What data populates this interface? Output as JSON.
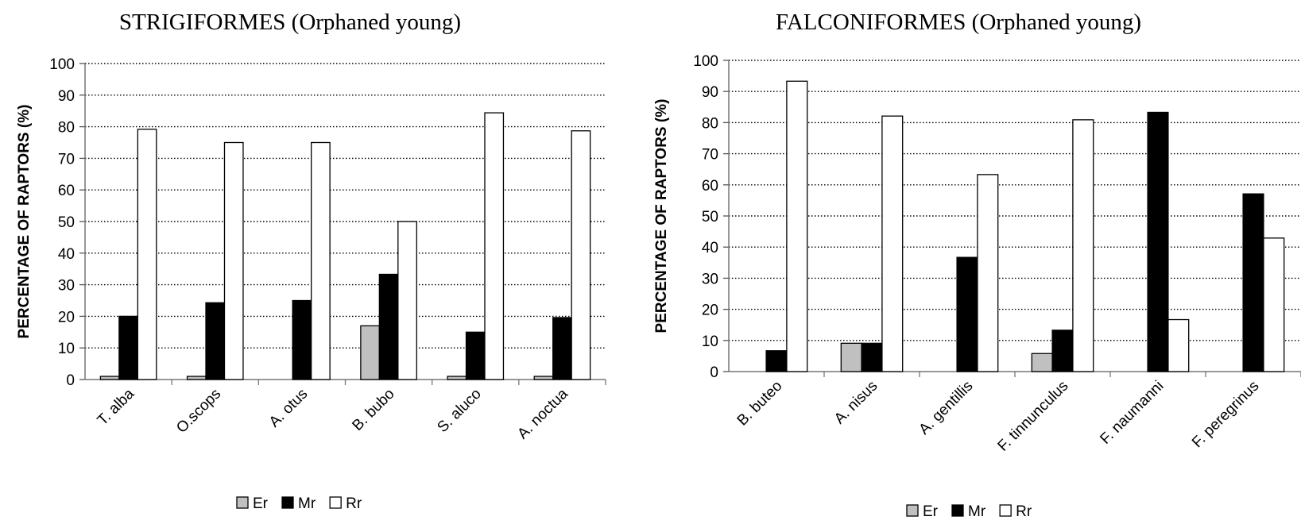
{
  "chart_data": [
    {
      "type": "bar",
      "title": "STRIGIFORMES (Orphaned young)",
      "ylabel": "PERCENTAGE  OF RAPTORS (%)",
      "xlabel": "",
      "ylim": [
        0,
        100
      ],
      "yticks": [
        0,
        10,
        20,
        30,
        40,
        50,
        60,
        70,
        80,
        90,
        100
      ],
      "grid": "horizontal-dotted",
      "legend_position": "bottom-center",
      "categories": [
        "T. alba",
        "O.scops",
        "A. otus",
        "B. bubo",
        "S. aluco",
        "A. noctua"
      ],
      "series": [
        {
          "name": "Er",
          "color": "#c0c0c0",
          "values": [
            1,
            1,
            0,
            17,
            1,
            1
          ]
        },
        {
          "name": "Mr",
          "color": "#000000",
          "values": [
            20,
            24.3,
            25,
            33.3,
            15,
            19.6
          ]
        },
        {
          "name": "Rr",
          "color": "#ffffff",
          "values": [
            79.2,
            75,
            75,
            50,
            84.4,
            78.7
          ]
        }
      ]
    },
    {
      "type": "bar",
      "title": "FALCONIFORMES (Orphaned young)",
      "ylabel": "PERCENTAGE  OF RAPTORS (%)",
      "xlabel": "",
      "ylim": [
        0,
        100
      ],
      "yticks": [
        0,
        10,
        20,
        30,
        40,
        50,
        60,
        70,
        80,
        90,
        100
      ],
      "grid": "horizontal-dotted",
      "legend_position": "bottom-center",
      "categories": [
        "B. buteo",
        "A. nisus",
        "A. gentillis",
        "F. tinnunculus",
        "F. naumanni",
        "F. peregrinus"
      ],
      "series": [
        {
          "name": "Er",
          "color": "#c0c0c0",
          "values": [
            0,
            9.1,
            0,
            5.8,
            0,
            0
          ]
        },
        {
          "name": "Mr",
          "color": "#000000",
          "values": [
            6.7,
            9.1,
            36.7,
            13.3,
            83.3,
            57.1
          ]
        },
        {
          "name": "Rr",
          "color": "#ffffff",
          "values": [
            93.3,
            82.1,
            63.3,
            80.9,
            16.7,
            42.9
          ]
        }
      ]
    }
  ]
}
